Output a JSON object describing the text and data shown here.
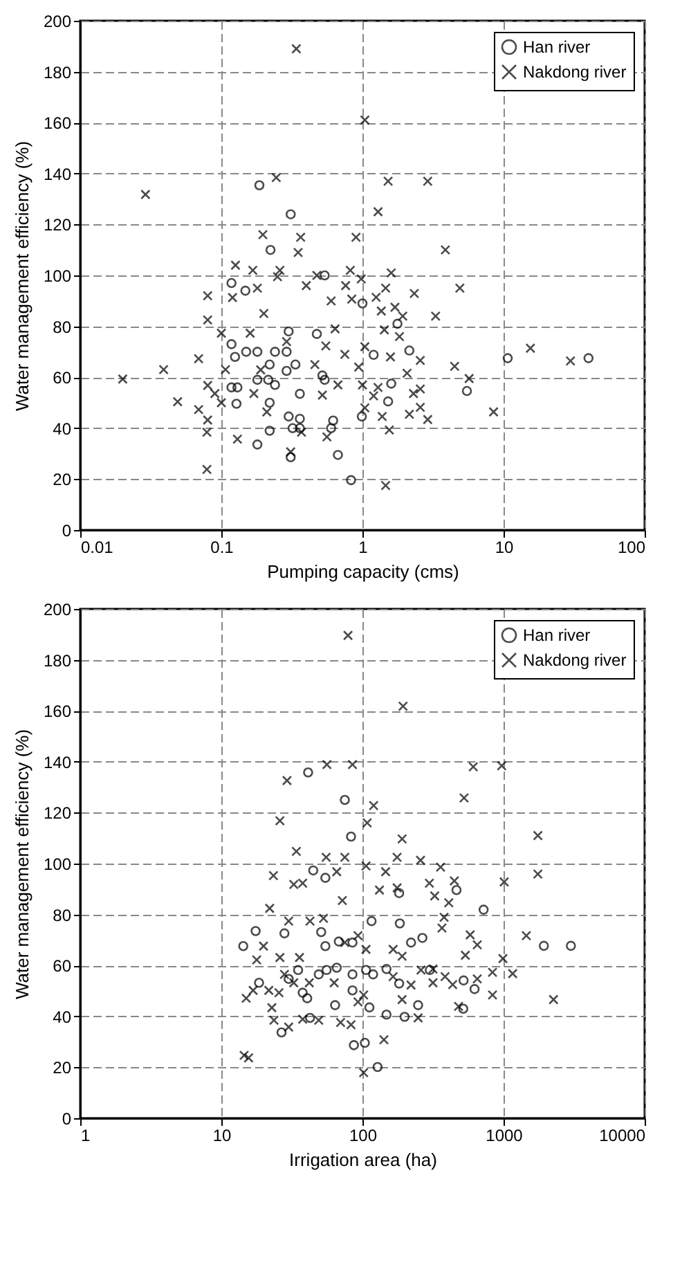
{
  "chart_data": [
    {
      "type": "scatter",
      "xlabel": "Pumping capacity (cms)",
      "ylabel": "Water management efficiency (%)",
      "log": "x",
      "xlim": [
        0.01,
        100
      ],
      "xticks": [
        0.01,
        0.1,
        1,
        10,
        100
      ],
      "ylim": [
        0,
        200
      ],
      "yticks": [
        0,
        20,
        40,
        60,
        80,
        100,
        120,
        140,
        160,
        180,
        200
      ],
      "grid": true,
      "legend": "top right",
      "series": [
        {
          "name": "Han river",
          "color": "#000000",
          "marker": "circle",
          "x": [
            0.186,
            0.31,
            0.223,
            0.118,
            0.148,
            0.54,
            1.0,
            0.3,
            0.475,
            1.77,
            2.15,
            0.118,
            0.125,
            0.15,
            0.18,
            0.24,
            0.29,
            0.335,
            0.22,
            0.118,
            0.13,
            0.18,
            0.215,
            0.24,
            0.29,
            0.36,
            0.22,
            0.3,
            0.36,
            0.32,
            0.36,
            0.62,
            0.6,
            0.22,
            0.18,
            0.31,
            0.67,
            0.83,
            0.52,
            0.54,
            1.6,
            1.52,
            0.99,
            1.2,
            5.5,
            10.7,
            40,
            0.128
          ],
          "values": [
            135.4,
            124,
            110,
            97,
            94,
            100,
            89,
            78,
            77,
            81,
            70.5,
            73,
            68,
            70,
            70,
            70,
            70,
            65,
            65,
            56,
            56,
            59,
            59,
            57,
            62.5,
            53.5,
            50,
            44.6,
            43.7,
            40,
            40,
            43,
            40,
            39,
            33.6,
            28.6,
            29.5,
            19.6,
            60.7,
            59,
            57.5,
            50.5,
            44.6,
            68.8,
            54.6,
            67.5,
            67.5,
            49.6
          ]
        },
        {
          "name": "Nakdong river",
          "color": "#000000",
          "marker": "cross",
          "x": [
            0.34,
            1.04,
            0.029,
            0.245,
            1.52,
            2.9,
            1.29,
            0.197,
            0.365,
            0.9,
            0.35,
            3.87,
            0.126,
            0.167,
            0.26,
            0.25,
            0.4,
            0.475,
            0.82,
            0.98,
            1.6,
            0.08,
            0.12,
            0.18,
            0.6,
            0.76,
            0.84,
            1.25,
            1.46,
            2.33,
            4.9,
            0.2,
            0.08,
            1.36,
            1.7,
            1.93,
            3.3,
            1.83,
            0.64,
            0.1,
            0.16,
            1.43,
            0.29,
            0.55,
            0.75,
            1.04,
            1.58,
            2.57,
            0.069,
            0.039,
            0.02,
            0.049,
            0.069,
            0.08,
            0.09,
            0.08,
            0.079,
            0.079,
            0.107,
            0.1,
            0.17,
            0.21,
            0.13,
            0.19,
            0.31,
            0.46,
            0.52,
            0.67,
            0.94,
            1.0,
            1.29,
            1.2,
            1.04,
            1.38,
            1.55,
            1.46,
            0.56,
            0.37,
            2.07,
            2.3,
            2.57,
            2.57,
            2.15,
            2.9,
            4.5,
            5.7,
            8.5,
            15.5,
            29.8
          ],
          "values": [
            189,
            161,
            131.8,
            138.4,
            137,
            137,
            125,
            116,
            115,
            115,
            109,
            110,
            104,
            102,
            102,
            99.5,
            96,
            100,
            102,
            98.6,
            101,
            92,
            91.3,
            95,
            90,
            96,
            90.7,
            91.4,
            95,
            92.9,
            95,
            85,
            82.5,
            86,
            87.5,
            84,
            84,
            76,
            79,
            77.3,
            77.3,
            78.6,
            74,
            72.3,
            69,
            72,
            68,
            66.6,
            67.3,
            63,
            59.3,
            50.4,
            47.3,
            56.8,
            53.6,
            43.2,
            38.4,
            23.8,
            63,
            50,
            53.6,
            46.4,
            35.7,
            62.9,
            30.7,
            65,
            53,
            57,
            64,
            57,
            56,
            52.7,
            48,
            44.6,
            39.3,
            17.5,
            36.6,
            38.4,
            61.6,
            53.6,
            55.4,
            48.2,
            45.5,
            43.4,
            64.3,
            59.5,
            46.4,
            71.4,
            66.4
          ]
        }
      ]
    },
    {
      "type": "scatter",
      "xlabel": "Irrigation area (ha)",
      "ylabel": "Water management efficiency (%)",
      "log": "x",
      "xlim": [
        1,
        10000
      ],
      "xticks": [
        1,
        10,
        100,
        1000,
        10000
      ],
      "ylim": [
        0,
        200
      ],
      "yticks": [
        0,
        20,
        40,
        60,
        80,
        100,
        120,
        140,
        160,
        180,
        200
      ],
      "grid": true,
      "legend": "top right",
      "series": [
        {
          "name": "Han river",
          "color": "#000000",
          "marker": "circle",
          "x": [
            41.2,
            75,
            83,
            44.8,
            54.6,
            116,
            182,
            464,
            722,
            17.5,
            14.3,
            28,
            54.6,
            68,
            85,
            184,
            266,
            221,
            55.7,
            65.7,
            49,
            35,
            30,
            18.5,
            37.7,
            40.6,
            64,
            85,
            85,
            112,
            106,
            119,
            182,
            248,
            148,
            199,
            42.5,
            26.7,
            87,
            104,
            128,
            518,
            521,
            623,
            1930,
            3000,
            51,
            148,
            300
          ],
          "values": [
            135.8,
            125,
            110.6,
            97.3,
            94.4,
            77.4,
            88.4,
            89.6,
            81.9,
            73.5,
            67.6,
            72.6,
            67.6,
            69.4,
            69,
            76.5,
            70.8,
            69,
            58.2,
            59.1,
            56.5,
            58.2,
            54.7,
            53.2,
            49.3,
            47.1,
            44.4,
            56.5,
            50.2,
            43.5,
            58.2,
            56.5,
            52.9,
            44.4,
            40.7,
            39.8,
            39.4,
            33.7,
            28.7,
            29.6,
            20.1,
            43,
            54.1,
            50.7,
            67.7,
            67.7,
            73.1,
            58.6,
            58.2
          ]
        },
        {
          "name": "Nakdong river",
          "color": "#000000",
          "marker": "cross",
          "x": [
            79,
            194,
            29.2,
            56,
            85,
            610,
            970,
            525,
            120,
            26,
            108,
            191,
            1750,
            1750,
            34,
            55.3,
            75,
            176,
            258,
            23.4,
            32.6,
            37.7,
            65.7,
            106,
            146,
            176,
            132,
            358,
            448,
            1010,
            298,
            72,
            325,
            409,
            22,
            30,
            42.5,
            53,
            366,
            580,
            651,
            1450,
            19.9,
            17.8,
            26,
            35.8,
            28,
            32.6,
            42,
            63,
            21.7,
            25.6,
            15,
            16.8,
            22.8,
            23.6,
            30,
            37.7,
            49,
            70,
            83,
            102,
            93,
            106,
            93,
            75,
            142,
            102,
            14.5,
            15.6,
            165,
            165,
            191,
            221,
            260,
            316,
            316,
            385,
            436,
            480,
            536,
            651,
            835,
            835,
            1160,
            990,
            191,
            248,
            2260,
            379
          ],
          "values": [
            189.6,
            161.8,
            132.6,
            138.9,
            138.9,
            138,
            138.4,
            125.8,
            122.8,
            116.8,
            116,
            109.7,
            111,
            95.9,
            104.8,
            102.5,
            102.5,
            102.5,
            101.3,
            95.3,
            91.8,
            92.3,
            96.8,
            99.1,
            96.8,
            90.5,
            89.6,
            98.6,
            93.2,
            92.8,
            92.3,
            85.5,
            87.3,
            84.6,
            82.4,
            77.4,
            77.4,
            78.5,
            74.7,
            72,
            68.1,
            71.7,
            67.6,
            62.2,
            63.1,
            63.1,
            56.5,
            53.2,
            53.2,
            53.2,
            50.2,
            49.3,
            47.1,
            50.2,
            43.4,
            38.5,
            35.8,
            38.9,
            38.5,
            37.6,
            36.7,
            48.4,
            45.7,
            66.3,
            71.7,
            69,
            30.8,
            17.9,
            24.7,
            23.7,
            66.3,
            55.6,
            63.6,
            52.3,
            58.2,
            58.6,
            53.2,
            55.6,
            52.5,
            43.9,
            64,
            54.7,
            57.3,
            48.4,
            56.8,
            62.7,
            46.6,
            39.4,
            46.6,
            78.9
          ]
        }
      ]
    }
  ]
}
